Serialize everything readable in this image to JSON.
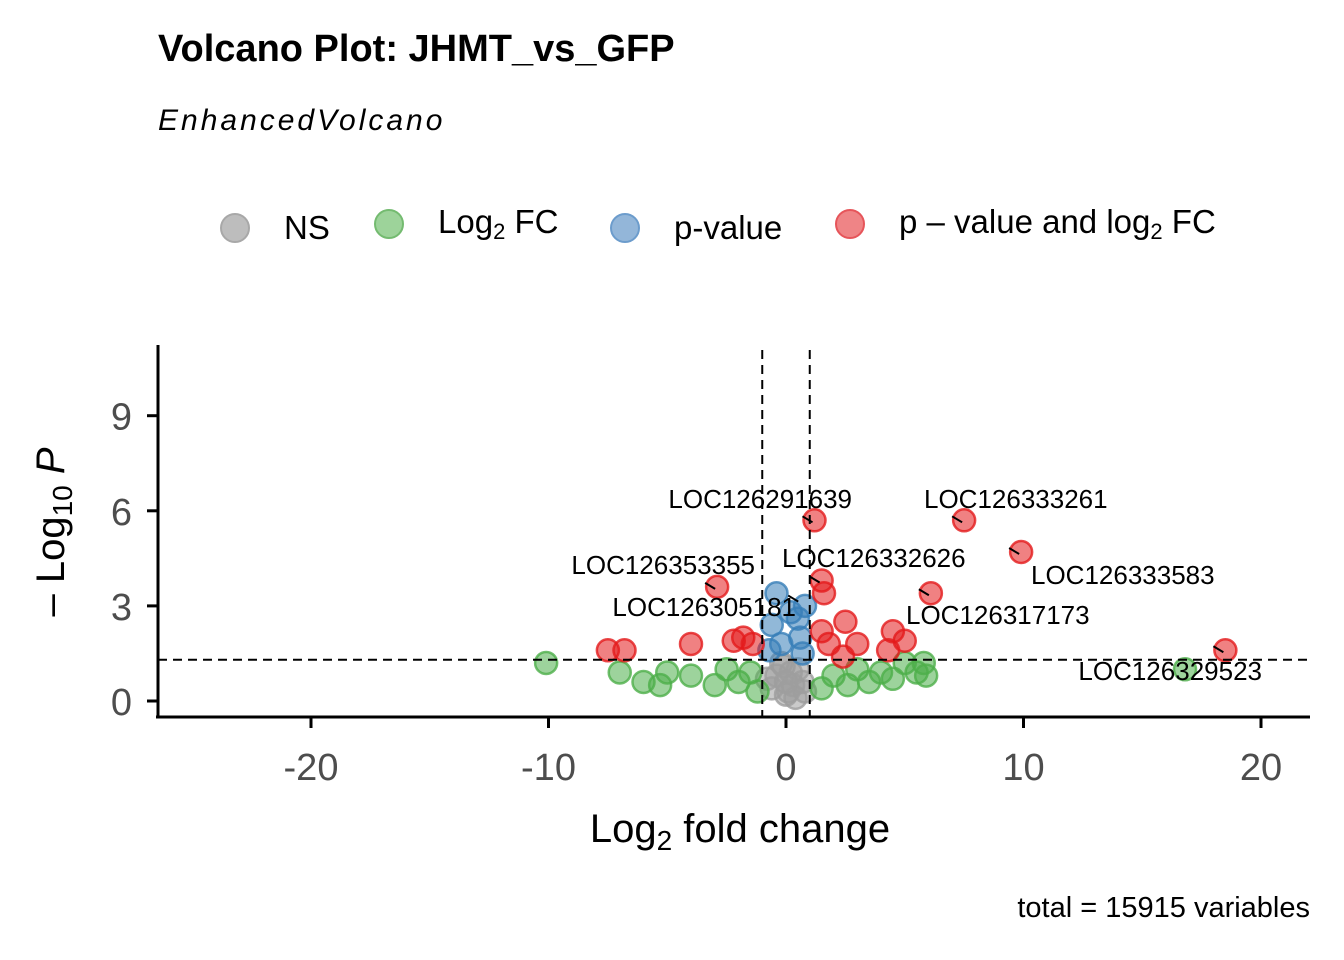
{
  "title": "Volcano Plot: JHMT_vs_GFP",
  "subtitle": "EnhancedVolcano",
  "caption": "total = 15915 variables",
  "legend": [
    {
      "label": "NS",
      "color": "#9e9e9e"
    },
    {
      "label": "Log2 FC",
      "color": "#4daf4a"
    },
    {
      "label": "p-value",
      "color": "#377eb8"
    },
    {
      "label": "p – value and log2 FC",
      "color": "#e41a1c"
    }
  ],
  "chart_data": {
    "type": "scatter",
    "title": "Volcano Plot: JHMT_vs_GFP",
    "subtitle": "EnhancedVolcano",
    "xlabel": "Log2 fold change",
    "ylabel": "– Log10 P",
    "xlim": [
      -26,
      22
    ],
    "ylim": [
      -0.5,
      11
    ],
    "xticks": [
      -20,
      -10,
      0,
      10,
      20
    ],
    "yticks": [
      0,
      3,
      6,
      9
    ],
    "thresholds": {
      "log2fc": [
        -1,
        1
      ],
      "neg_log10_p": 1.3
    },
    "series": [
      {
        "name": "NS",
        "color": "#9e9e9e",
        "points": [
          [
            0,
            0.2
          ],
          [
            0.3,
            0.5
          ],
          [
            -0.4,
            0.8
          ],
          [
            0.5,
            1.0
          ],
          [
            -0.2,
            1.2
          ],
          [
            0.1,
            0.3
          ],
          [
            0.7,
            0.6
          ],
          [
            -0.6,
            0.4
          ],
          [
            0.2,
            0.9
          ],
          [
            -0.1,
            1.1
          ],
          [
            0.4,
            0.1
          ],
          [
            -0.8,
            0.7
          ],
          [
            0.8,
            0.3
          ],
          [
            0.0,
            0.6
          ]
        ]
      },
      {
        "name": "Log2 FC",
        "color": "#4daf4a",
        "points": [
          [
            -10.1,
            1.2
          ],
          [
            -7,
            0.9
          ],
          [
            -6,
            0.6
          ],
          [
            -5.3,
            0.5
          ],
          [
            -5,
            0.9
          ],
          [
            -4,
            0.8
          ],
          [
            -3,
            0.5
          ],
          [
            -2.5,
            1.0
          ],
          [
            -2,
            0.6
          ],
          [
            -1.5,
            0.9
          ],
          [
            -1.2,
            0.3
          ],
          [
            1.5,
            0.4
          ],
          [
            2,
            0.8
          ],
          [
            2.6,
            0.5
          ],
          [
            3,
            1.0
          ],
          [
            3.5,
            0.6
          ],
          [
            4,
            0.9
          ],
          [
            4.5,
            0.7
          ],
          [
            5,
            1.2
          ],
          [
            5.5,
            0.9
          ],
          [
            5.8,
            1.2
          ],
          [
            5.9,
            0.8
          ],
          [
            16.8,
            1.0
          ]
        ]
      },
      {
        "name": "p-value",
        "color": "#377eb8",
        "points": [
          [
            -0.4,
            3.4
          ],
          [
            -0.6,
            2.4
          ],
          [
            0.6,
            2.0
          ],
          [
            0.2,
            2.8
          ],
          [
            -0.2,
            1.8
          ],
          [
            0.5,
            2.6
          ],
          [
            -0.7,
            1.6
          ],
          [
            0.8,
            3.0
          ],
          [
            0.7,
            1.5
          ]
        ]
      },
      {
        "name": "p – value and log2 FC",
        "color": "#e41a1c",
        "points": [
          [
            -7.5,
            1.6
          ],
          [
            -6.8,
            1.6
          ],
          [
            -4,
            1.8
          ],
          [
            -2.9,
            3.6
          ],
          [
            -2.2,
            1.9
          ],
          [
            -1.8,
            2.0
          ],
          [
            -1.4,
            1.8
          ],
          [
            1.2,
            5.7
          ],
          [
            1.5,
            3.8
          ],
          [
            1.6,
            3.4
          ],
          [
            1.5,
            2.2
          ],
          [
            1.8,
            1.8
          ],
          [
            2.5,
            2.5
          ],
          [
            3,
            1.8
          ],
          [
            2.4,
            1.4
          ],
          [
            4.5,
            2.2
          ],
          [
            5,
            1.9
          ],
          [
            4.3,
            1.6
          ],
          [
            6.1,
            3.4
          ],
          [
            7.5,
            5.7
          ],
          [
            9.9,
            4.7
          ],
          [
            18.5,
            1.6
          ]
        ]
      }
    ],
    "labels": [
      {
        "text": "LOC126291639",
        "x": 1.2,
        "y": 5.7
      },
      {
        "text": "LOC126333261",
        "x": 7.5,
        "y": 5.7
      },
      {
        "text": "LOC126353355",
        "x": -2.9,
        "y": 3.6
      },
      {
        "text": "LOC126332626",
        "x": 1.5,
        "y": 3.8
      },
      {
        "text": "LOC126333583",
        "x": 9.9,
        "y": 4.7
      },
      {
        "text": "LOC126305181",
        "x": 0.6,
        "y": 3.2
      },
      {
        "text": "LOC126317173",
        "x": 6.1,
        "y": 3.4
      },
      {
        "text": "LOC126329523",
        "x": 18.5,
        "y": 1.6
      }
    ]
  }
}
